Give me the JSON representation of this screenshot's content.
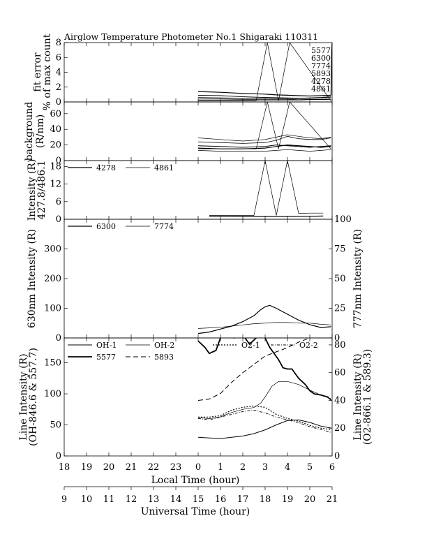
{
  "title": "Airglow Temperature Photometer No.1  Shigaraki   110311",
  "x_axes": {
    "local": {
      "label": "Local Time (hour)",
      "ticks": [
        "18",
        "19",
        "20",
        "21",
        "22",
        "23",
        "0",
        "1",
        "2",
        "3",
        "4",
        "5",
        "6"
      ]
    },
    "universal": {
      "label": "Universal Time (hour)",
      "ticks": [
        "9",
        "10",
        "11",
        "12",
        "13",
        "14",
        "15",
        "16",
        "17",
        "18",
        "19",
        "20",
        "21"
      ]
    }
  },
  "chart_data": [
    {
      "type": "line",
      "id": "fit_error",
      "ylabel": [
        "fit error",
        "% of max count"
      ],
      "ylim": [
        0,
        8
      ],
      "yticks": [
        "0",
        "2",
        "4",
        "6",
        "8"
      ],
      "x_unit": "local time hours after 18:00",
      "end_labels": [
        "5577",
        "6300",
        "7774",
        "5893",
        "4278",
        "4861"
      ],
      "series": [
        {
          "name": "5577",
          "width": 1.2,
          "x": [
            6,
            7,
            8,
            9,
            9.5,
            10,
            10.5,
            11,
            11.5,
            11.95
          ],
          "y": [
            1.4,
            1.3,
            1.15,
            1.05,
            0.95,
            0.9,
            0.85,
            0.8,
            0.85,
            0.9
          ]
        },
        {
          "name": "6300",
          "width": 0.9,
          "x": [
            6,
            7,
            8,
            9,
            10,
            10.5,
            11,
            11.5,
            11.95
          ],
          "y": [
            0.9,
            0.85,
            0.7,
            0.6,
            0.55,
            0.5,
            0.55,
            0.6,
            0.7
          ]
        },
        {
          "name": "7774",
          "width": 0.8,
          "x": [
            6,
            7,
            8,
            9,
            10,
            10.5,
            11,
            11.5,
            11.95
          ],
          "y": [
            0.6,
            0.55,
            0.5,
            0.5,
            0.45,
            0.45,
            0.5,
            0.55,
            0.6
          ]
        },
        {
          "name": "5893",
          "width": 0.8,
          "x": [
            6,
            7,
            8,
            9,
            10,
            10.5,
            11,
            11.5,
            11.95
          ],
          "y": [
            0.4,
            0.4,
            0.35,
            0.35,
            0.35,
            0.3,
            0.35,
            0.35,
            0.4
          ]
        },
        {
          "name": "4278",
          "width": 0.7,
          "x": [
            6,
            8.6,
            9.1,
            9.6,
            10.1,
            11.95
          ],
          "y": [
            0.15,
            0.15,
            8,
            0.15,
            8,
            0.15
          ]
        },
        {
          "name": "4861",
          "width": 0.7,
          "x": [
            6,
            7,
            8.6,
            9,
            10,
            10.6,
            11,
            11.95
          ],
          "y": [
            0.25,
            0.25,
            0.25,
            0.25,
            0.25,
            0.25,
            0.3,
            0.3
          ]
        }
      ],
      "spike": {
        "x": [
          11.95,
          11.98,
          12.0
        ],
        "y": [
          0.9,
          6.8,
          8
        ]
      }
    },
    {
      "type": "line",
      "id": "background",
      "ylabel": [
        "background",
        "(R/nm)"
      ],
      "ylim": [
        0,
        75
      ],
      "yticks": [
        "0",
        "20",
        "40",
        "60"
      ],
      "x_unit": "local time hours after 18:00",
      "series": [
        {
          "name": "",
          "width": 0.7,
          "x": [
            6,
            7,
            8,
            9,
            9.5,
            10,
            10.5,
            11,
            11.5,
            11.95
          ],
          "y": [
            29,
            27,
            25,
            27,
            30,
            33,
            31,
            29,
            28,
            30
          ]
        },
        {
          "name": "",
          "width": 0.8,
          "x": [
            6,
            7,
            8,
            9,
            9.5,
            10,
            10.5,
            11,
            11.5,
            11.95
          ],
          "y": [
            24,
            23,
            22,
            23,
            26,
            31,
            28,
            27,
            27,
            29
          ]
        },
        {
          "name": "",
          "width": 1.0,
          "x": [
            6,
            7,
            8,
            9,
            9.5,
            10,
            10.5,
            11,
            11.5,
            11.95
          ],
          "y": [
            19,
            18,
            17,
            18,
            20,
            19,
            18,
            17,
            18,
            19
          ]
        },
        {
          "name": "",
          "width": 1.2,
          "x": [
            6,
            7,
            8,
            9,
            9.5,
            10,
            10.5,
            11,
            11.5,
            11.95
          ],
          "y": [
            16,
            15,
            15,
            16,
            18,
            20,
            19,
            18,
            17,
            18
          ]
        },
        {
          "name": "",
          "width": 0.7,
          "x": [
            6,
            7,
            8,
            9,
            9.5,
            10,
            10.5,
            11,
            11.5,
            11.95
          ],
          "y": [
            13,
            12,
            12,
            12,
            13,
            14,
            13,
            12,
            13,
            14
          ]
        },
        {
          "name": "",
          "width": 0.7,
          "x": [
            6,
            8.6,
            9.1,
            9.6,
            10.1,
            11.95
          ],
          "y": [
            15,
            15,
            75,
            15,
            75,
            15
          ]
        }
      ]
    },
    {
      "type": "line",
      "id": "blue_lines",
      "ylabel": [
        "Intensity (R)",
        "427.8/486.1"
      ],
      "ylim": [
        0,
        20
      ],
      "yticks": [
        "0",
        "6",
        "12",
        "18"
      ],
      "x_unit": "local time hours after 18:00",
      "series": [
        {
          "name": "4278",
          "width": 1.2,
          "x": [
            6.5,
            7,
            8,
            9,
            10,
            11,
            11.6
          ],
          "y": [
            1.0,
            1.0,
            0.9,
            0.9,
            0.9,
            1.0,
            1.1
          ]
        },
        {
          "name": "4861",
          "width": 0.7,
          "x": [
            6.5,
            8.5,
            9,
            9.5,
            10,
            10.5,
            11,
            11.6
          ],
          "y": [
            1.3,
            1.3,
            20,
            1.3,
            20,
            2.0,
            2.1,
            2.1
          ]
        }
      ]
    },
    {
      "type": "line",
      "id": "oi_lines",
      "ylabel": [
        "630nm Intensity (R)"
      ],
      "ylim": [
        0,
        400
      ],
      "yticks": [
        "0",
        "100",
        "200",
        "300"
      ],
      "y2label": [
        "777nm Intensity (R)"
      ],
      "y2lim": [
        0,
        100
      ],
      "y2ticks": [
        "0",
        "25",
        "50",
        "75",
        "100"
      ],
      "x_unit": "local time hours after 18:00",
      "series": [
        {
          "name": "6300",
          "axis": "left",
          "width": 1.2,
          "x": [
            6,
            6.5,
            7,
            7.5,
            8,
            8.5,
            8.8,
            9,
            9.2,
            9.5,
            10,
            10.5,
            11,
            11.5,
            11.95
          ],
          "y": [
            15,
            20,
            30,
            40,
            55,
            75,
            95,
            105,
            110,
            100,
            80,
            60,
            45,
            35,
            38
          ]
        },
        {
          "name": "7774",
          "axis": "right",
          "width": 0.7,
          "x": [
            6,
            6.5,
            7,
            7.5,
            8,
            8.5,
            9,
            9.5,
            10,
            10.5,
            11,
            11.5,
            11.95
          ],
          "y": [
            8,
            8.5,
            9,
            10,
            11,
            12,
            12.5,
            13,
            13,
            12.5,
            12.5,
            11.5,
            11
          ]
        }
      ]
    },
    {
      "type": "line",
      "id": "oh_na_o2",
      "ylabel": [
        "Line Intensity (R)",
        "(OH-846.6 & 557.7)"
      ],
      "ylim": [
        0,
        190
      ],
      "yticks": [
        "0",
        "50",
        "100",
        "150"
      ],
      "y2label": [
        "Line Intensity (R)",
        "(O2-866.1 & 589.3)"
      ],
      "y2lim": [
        0,
        85
      ],
      "y2ticks": [
        "0",
        "20",
        "40",
        "60",
        "80"
      ],
      "x_unit": "local time hours after 18:00",
      "series": [
        {
          "name": "OH-1",
          "axis": "left",
          "width": 1.0,
          "x": [
            6,
            6.5,
            7,
            7.5,
            8,
            8.5,
            9,
            9.5,
            10,
            10.5,
            11,
            11.5,
            11.95
          ],
          "y": [
            30,
            29,
            28,
            30,
            32,
            36,
            42,
            50,
            57,
            58,
            54,
            48,
            45
          ]
        },
        {
          "name": "OH-2",
          "axis": "left",
          "width": 0.7,
          "x": [
            6,
            6.5,
            7,
            7.5,
            8,
            8.5,
            8.8,
            9,
            9.3,
            9.6,
            10,
            10.5,
            11,
            11.5,
            11.95
          ],
          "y": [
            62,
            60,
            63,
            70,
            75,
            78,
            85,
            95,
            112,
            120,
            120,
            115,
            106,
            98,
            92
          ]
        },
        {
          "name": "5577",
          "axis": "left",
          "width": 1.8,
          "x": [
            6,
            6.3,
            6.5,
            6.8,
            7,
            7.3,
            7.6,
            8,
            8.3,
            8.6,
            8.8,
            9,
            9.2,
            9.4,
            9.6,
            9.8,
            10,
            10.2,
            10.5,
            10.8,
            11,
            11.2,
            11.5,
            11.8,
            11.95
          ],
          "y": [
            185,
            175,
            165,
            170,
            190,
            200,
            190,
            195,
            180,
            190,
            200,
            190,
            175,
            165,
            155,
            142,
            140,
            140,
            125,
            115,
            105,
            100,
            98,
            95,
            90
          ]
        },
        {
          "name": "5893",
          "axis": "right",
          "width": 1.0,
          "dash": "7,4",
          "x": [
            6,
            6.5,
            7,
            7.5,
            8,
            8.5,
            9,
            9.5,
            10,
            10.5,
            11,
            11.5,
            11.95
          ],
          "y": [
            40,
            41,
            45,
            53,
            60,
            66,
            72,
            75,
            78,
            82,
            85,
            85,
            85
          ]
        },
        {
          "name": "O2-1",
          "axis": "right",
          "width": 1.2,
          "dash": "2,2",
          "x": [
            6,
            6.5,
            7,
            7.5,
            8,
            8.5,
            9,
            9.5,
            10,
            10.5,
            11,
            11.5,
            11.95
          ],
          "y": [
            28,
            28,
            29,
            33,
            35,
            36,
            35,
            30,
            27,
            25,
            22,
            20,
            19
          ]
        },
        {
          "name": "O2-2",
          "axis": "right",
          "width": 0.9,
          "dash": "4,2,1,2",
          "x": [
            6,
            6.5,
            7,
            7.5,
            8,
            8.5,
            9,
            9.5,
            10,
            10.5,
            11,
            11.5,
            11.95
          ],
          "y": [
            27,
            26,
            28,
            30,
            32,
            33,
            31,
            28,
            26,
            24,
            21,
            19,
            17
          ]
        }
      ]
    }
  ]
}
